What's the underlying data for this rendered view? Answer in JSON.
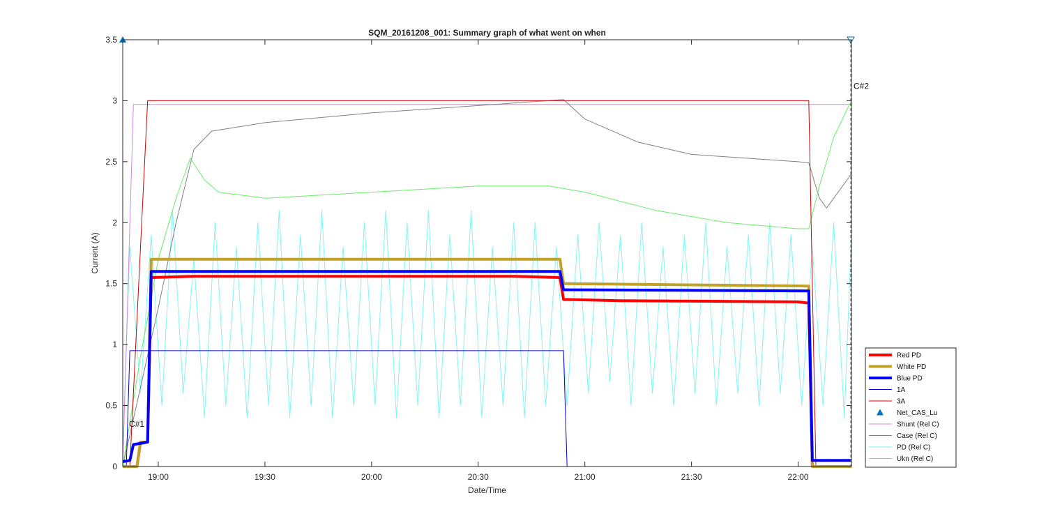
{
  "chart_data": {
    "type": "line",
    "title": "SQM_20161208_001: Summary graph of what went on when",
    "xlabel": "Date/Time",
    "ylabel": "Current (A)",
    "x_unit": "time of day (HH:MM)",
    "xlim": [
      "18:50",
      "22:15"
    ],
    "ylim": [
      0,
      3.5
    ],
    "x_ticks": [
      "19:00",
      "19:30",
      "20:00",
      "20:30",
      "21:00",
      "21:30",
      "22:00"
    ],
    "y_ticks": [
      0,
      0.5,
      1,
      1.5,
      2,
      2.5,
      3,
      3.5
    ],
    "y_tick_labels": [
      "0",
      "0.5",
      "1",
      "1.5",
      "2",
      "2.5",
      "3",
      "3.5"
    ],
    "grid": false,
    "legend_position": "bottom-right outside",
    "annotations": [
      {
        "text": "C#1",
        "x": "18:51",
        "y": 0.35
      },
      {
        "text": "C#2",
        "x": "22:15",
        "y": 3.12
      }
    ],
    "series": [
      {
        "name": "Red PD",
        "color": "#ff0000",
        "style": "thick",
        "points": [
          [
            "18:50",
            0.0
          ],
          [
            "18:54",
            0.0
          ],
          [
            "18:55",
            0.2
          ],
          [
            "18:57",
            0.2
          ],
          [
            "18:58",
            1.55
          ],
          [
            "19:10",
            1.56
          ],
          [
            "20:40",
            1.56
          ],
          [
            "20:53",
            1.55
          ],
          [
            "20:54",
            1.37
          ],
          [
            "21:10",
            1.36
          ],
          [
            "22:00",
            1.35
          ],
          [
            "22:03",
            1.34
          ],
          [
            "22:04",
            0.0
          ],
          [
            "22:15",
            0.0
          ]
        ]
      },
      {
        "name": "White PD",
        "color": "#c2a12b",
        "style": "thick",
        "points": [
          [
            "18:50",
            0.0
          ],
          [
            "18:54",
            0.0
          ],
          [
            "18:55",
            0.2
          ],
          [
            "18:57",
            0.2
          ],
          [
            "18:58",
            1.7
          ],
          [
            "19:10",
            1.7
          ],
          [
            "20:53",
            1.7
          ],
          [
            "20:54",
            1.5
          ],
          [
            "22:03",
            1.48
          ],
          [
            "22:04",
            0.0
          ],
          [
            "22:15",
            0.0
          ]
        ]
      },
      {
        "name": "Blue PD",
        "color": "#0000ff",
        "style": "thick",
        "points": [
          [
            "18:50",
            0.04
          ],
          [
            "18:52",
            0.05
          ],
          [
            "18:53",
            0.18
          ],
          [
            "18:57",
            0.2
          ],
          [
            "18:58",
            1.6
          ],
          [
            "19:10",
            1.6
          ],
          [
            "20:53",
            1.6
          ],
          [
            "20:54",
            1.45
          ],
          [
            "22:03",
            1.44
          ],
          [
            "22:04",
            0.05
          ],
          [
            "22:15",
            0.05
          ]
        ]
      },
      {
        "name": "1A",
        "color": "#0000cc",
        "style": "thin",
        "points": [
          [
            "18:50",
            0.0
          ],
          [
            "18:51",
            0.0
          ],
          [
            "18:52",
            0.95
          ],
          [
            "20:54",
            0.95
          ],
          [
            "20:55",
            0.0
          ],
          [
            "22:15",
            0.0
          ]
        ]
      },
      {
        "name": "3A",
        "color": "#cc0000",
        "style": "thin",
        "points": [
          [
            "18:50",
            0.0
          ],
          [
            "18:52",
            0.0
          ],
          [
            "18:57",
            3.0
          ],
          [
            "22:03",
            3.0
          ],
          [
            "22:05",
            0.0
          ],
          [
            "22:15",
            0.0
          ]
        ]
      },
      {
        "name": "Net_CAS_Lu",
        "color": "#0072bd",
        "style": "marker",
        "points": [
          [
            "18:50",
            3.5
          ],
          [
            "22:15",
            3.5
          ]
        ]
      },
      {
        "name": "Shunt (Rel C)",
        "color": "#cc88ee",
        "style": "thin",
        "points": [
          [
            "18:50",
            0.0
          ],
          [
            "18:53",
            2.97
          ],
          [
            "22:15",
            2.97
          ]
        ]
      },
      {
        "name": "Case (Rel C)",
        "color": "#808080",
        "style": "thin",
        "points": [
          [
            "18:50",
            0.0
          ],
          [
            "19:00",
            1.3
          ],
          [
            "19:05",
            2.0
          ],
          [
            "19:10",
            2.6
          ],
          [
            "19:15",
            2.75
          ],
          [
            "19:30",
            2.82
          ],
          [
            "20:00",
            2.9
          ],
          [
            "20:30",
            2.96
          ],
          [
            "20:54",
            3.01
          ],
          [
            "21:00",
            2.85
          ],
          [
            "21:15",
            2.66
          ],
          [
            "21:30",
            2.56
          ],
          [
            "22:00",
            2.5
          ],
          [
            "22:03",
            2.49
          ],
          [
            "22:06",
            2.2
          ],
          [
            "22:08",
            2.12
          ],
          [
            "22:15",
            2.4
          ]
        ]
      },
      {
        "name": "PD (Rel C)",
        "color": "#7ff5f5",
        "style": "thin",
        "points": [
          [
            "18:50",
            0.1
          ],
          [
            "18:52",
            1.8
          ],
          [
            "18:55",
            0.6
          ],
          [
            "18:58",
            1.9
          ],
          [
            "19:01",
            0.5
          ],
          [
            "19:04",
            2.1
          ],
          [
            "19:07",
            0.6
          ],
          [
            "19:10",
            1.7
          ],
          [
            "19:13",
            0.4
          ],
          [
            "19:16",
            2.0
          ],
          [
            "19:19",
            0.5
          ],
          [
            "19:22",
            1.8
          ],
          [
            "19:25",
            0.4
          ],
          [
            "19:28",
            2.0
          ],
          [
            "19:31",
            0.5
          ],
          [
            "19:34",
            2.1
          ],
          [
            "19:37",
            0.4
          ],
          [
            "19:40",
            1.9
          ],
          [
            "19:43",
            0.5
          ],
          [
            "19:46",
            2.1
          ],
          [
            "19:49",
            0.4
          ],
          [
            "19:52",
            1.8
          ],
          [
            "19:55",
            0.5
          ],
          [
            "19:58",
            2.0
          ],
          [
            "20:01",
            0.5
          ],
          [
            "20:04",
            2.1
          ],
          [
            "20:07",
            0.4
          ],
          [
            "20:10",
            2.0
          ],
          [
            "20:13",
            0.5
          ],
          [
            "20:16",
            2.1
          ],
          [
            "20:19",
            0.4
          ],
          [
            "20:22",
            1.9
          ],
          [
            "20:25",
            0.5
          ],
          [
            "20:28",
            2.1
          ],
          [
            "20:31",
            0.4
          ],
          [
            "20:34",
            1.8
          ],
          [
            "20:37",
            0.5
          ],
          [
            "20:40",
            2.0
          ],
          [
            "20:43",
            0.4
          ],
          [
            "20:46",
            2.0
          ],
          [
            "20:49",
            0.5
          ],
          [
            "20:52",
            1.8
          ],
          [
            "20:55",
            0.5
          ],
          [
            "20:58",
            1.9
          ],
          [
            "21:01",
            0.6
          ],
          [
            "21:04",
            2.0
          ],
          [
            "21:07",
            0.7
          ],
          [
            "21:10",
            1.9
          ],
          [
            "21:13",
            0.5
          ],
          [
            "21:16",
            2.0
          ],
          [
            "21:19",
            0.6
          ],
          [
            "21:22",
            1.8
          ],
          [
            "21:25",
            0.5
          ],
          [
            "21:28",
            1.9
          ],
          [
            "21:31",
            0.6
          ],
          [
            "21:34",
            2.0
          ],
          [
            "21:37",
            0.5
          ],
          [
            "21:40",
            1.8
          ],
          [
            "21:43",
            0.6
          ],
          [
            "21:46",
            1.9
          ],
          [
            "21:49",
            0.5
          ],
          [
            "21:52",
            2.0
          ],
          [
            "21:55",
            0.6
          ],
          [
            "21:58",
            1.9
          ],
          [
            "22:01",
            0.5
          ],
          [
            "22:04",
            1.8
          ],
          [
            "22:07",
            0.5
          ],
          [
            "22:10",
            2.0
          ],
          [
            "22:13",
            0.4
          ],
          [
            "22:15",
            1.9
          ]
        ]
      },
      {
        "name": "Ukn (Rel C)",
        "color": "#66ee66",
        "style": "thin",
        "points": [
          [
            "18:50",
            0.0
          ],
          [
            "18:55",
            0.9
          ],
          [
            "19:00",
            1.7
          ],
          [
            "19:05",
            2.2
          ],
          [
            "19:09",
            2.53
          ],
          [
            "19:13",
            2.35
          ],
          [
            "19:17",
            2.25
          ],
          [
            "19:30",
            2.2
          ],
          [
            "20:00",
            2.25
          ],
          [
            "20:30",
            2.3
          ],
          [
            "20:50",
            2.3
          ],
          [
            "21:00",
            2.25
          ],
          [
            "21:20",
            2.1
          ],
          [
            "21:40",
            2.0
          ],
          [
            "22:00",
            1.95
          ],
          [
            "22:03",
            1.95
          ],
          [
            "22:06",
            2.3
          ],
          [
            "22:10",
            2.7
          ],
          [
            "22:15",
            3.0
          ]
        ]
      }
    ]
  }
}
